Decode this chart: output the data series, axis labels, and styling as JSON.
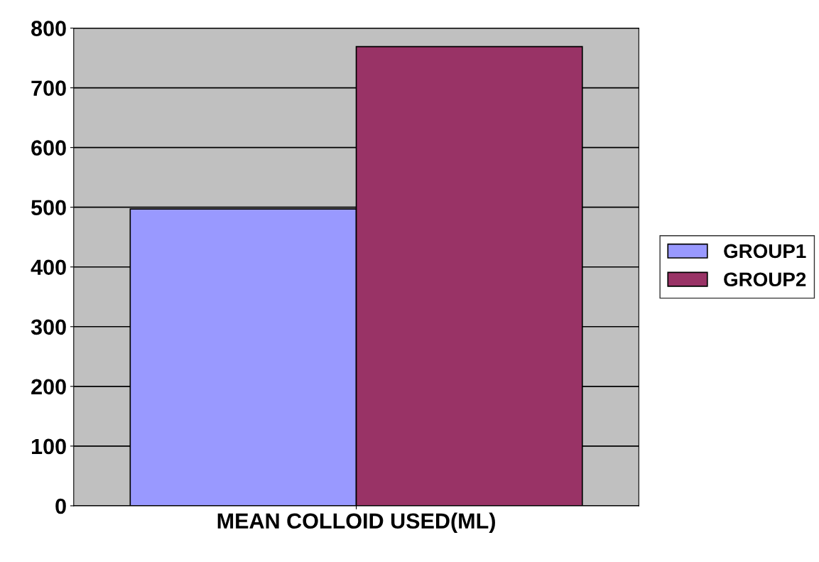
{
  "chart_data": {
    "type": "bar",
    "categories": [
      "MEAN COLLOID USED(ML)"
    ],
    "series": [
      {
        "name": "GROUP1",
        "color": "#9999ff",
        "values": [
          497
        ]
      },
      {
        "name": "GROUP2",
        "color": "#993366",
        "values": [
          769
        ]
      }
    ],
    "ylim": [
      0,
      800
    ],
    "yticks": [
      0,
      100,
      200,
      300,
      400,
      500,
      600,
      700,
      800
    ],
    "grid": "y",
    "legend": "right"
  }
}
